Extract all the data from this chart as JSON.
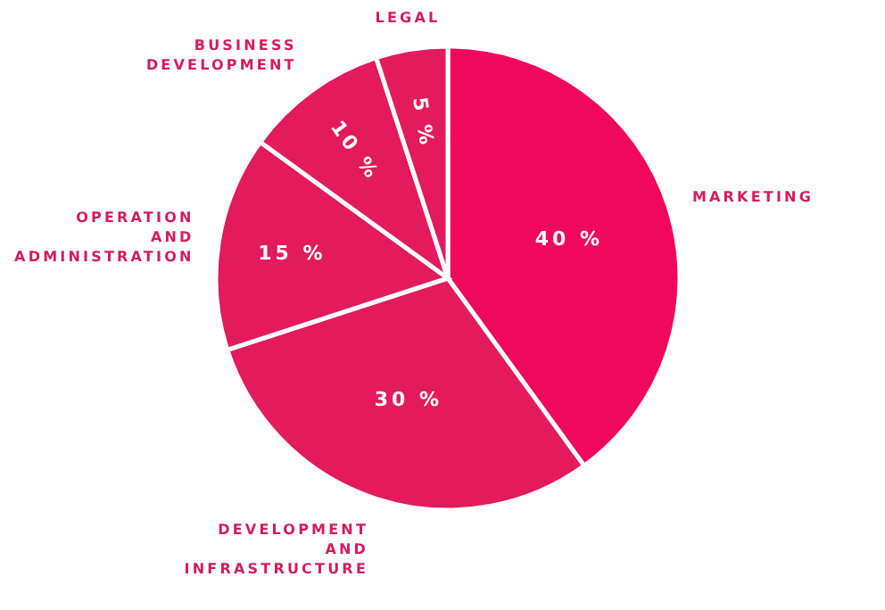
{
  "chart_data": {
    "type": "pie",
    "categories": [
      "MARKETING",
      "DEVELOPMENT AND INFRASTRUCTURE",
      "OPERATION AND ADMINISTRATION",
      "BUSINESS DEVELOPMENT",
      "LEGAL"
    ],
    "values": [
      40,
      30,
      15,
      10,
      5
    ],
    "value_labels": [
      "40 %",
      "30 %",
      "15 %",
      "10 %",
      "5 %"
    ],
    "colors": [
      "#f0085c",
      "#e31a5c",
      "#e31a5c",
      "#e31a5c",
      "#e31a5c"
    ]
  }
}
